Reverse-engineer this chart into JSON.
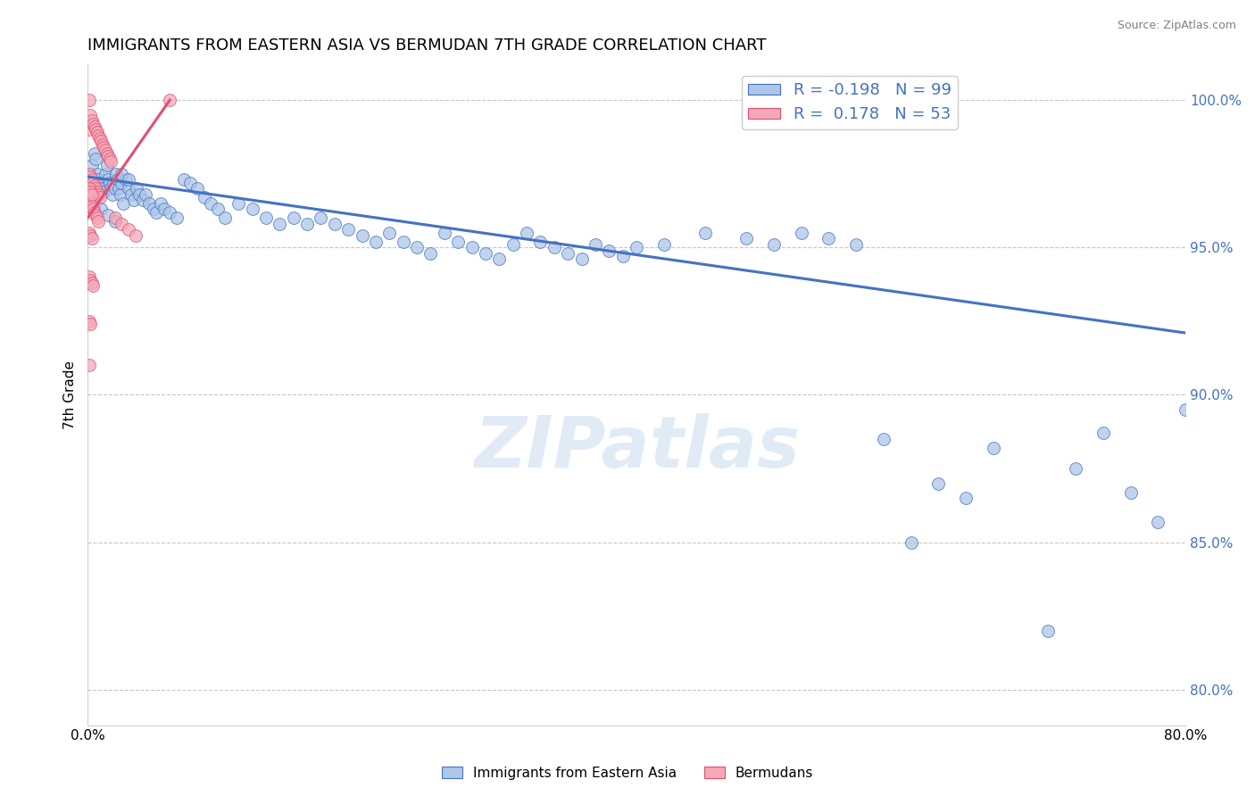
{
  "title": "IMMIGRANTS FROM EASTERN ASIA VS BERMUDAN 7TH GRADE CORRELATION CHART",
  "source": "Source: ZipAtlas.com",
  "ylabel": "7th Grade",
  "xlim": [
    0.0,
    0.8
  ],
  "ylim": [
    0.788,
    1.012
  ],
  "x_ticks": [
    0.0,
    0.2,
    0.4,
    0.6,
    0.8
  ],
  "x_tick_labels": [
    "0.0%",
    "",
    "",
    "",
    "80.0%"
  ],
  "y_ticks": [
    0.8,
    0.85,
    0.9,
    0.95,
    1.0
  ],
  "y_tick_labels": [
    "80.0%",
    "85.0%",
    "90.0%",
    "95.0%",
    "100.0%"
  ],
  "blue_R": -0.198,
  "blue_N": 99,
  "pink_R": 0.178,
  "pink_N": 53,
  "blue_color": "#aec6e8",
  "pink_color": "#f4a8b8",
  "blue_line_color": "#4472c4",
  "pink_line_color": "#e05070",
  "watermark": "ZIPatlas",
  "blue_line_x0": 0.0,
  "blue_line_y0": 0.974,
  "blue_line_x1": 0.8,
  "blue_line_y1": 0.921,
  "pink_line_x0": 0.0,
  "pink_line_y0": 0.96,
  "pink_line_x1": 0.06,
  "pink_line_y1": 1.0,
  "blue_points_x": [
    0.003,
    0.005,
    0.006,
    0.007,
    0.008,
    0.009,
    0.01,
    0.011,
    0.012,
    0.013,
    0.014,
    0.015,
    0.016,
    0.017,
    0.018,
    0.019,
    0.02,
    0.021,
    0.022,
    0.023,
    0.024,
    0.025,
    0.026,
    0.028,
    0.03,
    0.032,
    0.034,
    0.036,
    0.038,
    0.04,
    0.042,
    0.045,
    0.048,
    0.05,
    0.053,
    0.056,
    0.06,
    0.065,
    0.07,
    0.075,
    0.08,
    0.085,
    0.09,
    0.095,
    0.1,
    0.11,
    0.12,
    0.13,
    0.14,
    0.15,
    0.16,
    0.17,
    0.18,
    0.19,
    0.2,
    0.21,
    0.22,
    0.23,
    0.24,
    0.25,
    0.26,
    0.27,
    0.28,
    0.29,
    0.3,
    0.31,
    0.32,
    0.33,
    0.34,
    0.35,
    0.36,
    0.37,
    0.38,
    0.39,
    0.4,
    0.42,
    0.45,
    0.48,
    0.5,
    0.52,
    0.54,
    0.56,
    0.58,
    0.6,
    0.62,
    0.64,
    0.66,
    0.7,
    0.72,
    0.74,
    0.76,
    0.78,
    0.8,
    0.005,
    0.01,
    0.015,
    0.02,
    0.025,
    0.03
  ],
  "blue_points_y": [
    0.978,
    0.982,
    0.98,
    0.975,
    0.973,
    0.972,
    0.971,
    0.97,
    0.969,
    0.975,
    0.978,
    0.973,
    0.972,
    0.97,
    0.968,
    0.972,
    0.97,
    0.975,
    0.973,
    0.97,
    0.968,
    0.972,
    0.965,
    0.973,
    0.97,
    0.968,
    0.966,
    0.97,
    0.968,
    0.966,
    0.968,
    0.965,
    0.963,
    0.962,
    0.965,
    0.963,
    0.962,
    0.96,
    0.973,
    0.972,
    0.97,
    0.967,
    0.965,
    0.963,
    0.96,
    0.965,
    0.963,
    0.96,
    0.958,
    0.96,
    0.958,
    0.96,
    0.958,
    0.956,
    0.954,
    0.952,
    0.955,
    0.952,
    0.95,
    0.948,
    0.955,
    0.952,
    0.95,
    0.948,
    0.946,
    0.951,
    0.955,
    0.952,
    0.95,
    0.948,
    0.946,
    0.951,
    0.949,
    0.947,
    0.95,
    0.951,
    0.955,
    0.953,
    0.951,
    0.955,
    0.953,
    0.951,
    0.885,
    0.85,
    0.87,
    0.865,
    0.882,
    0.82,
    0.875,
    0.887,
    0.867,
    0.857,
    0.895,
    0.965,
    0.963,
    0.961,
    0.959,
    0.975,
    0.973
  ],
  "pink_points_x": [
    0.001,
    0.002,
    0.003,
    0.004,
    0.005,
    0.006,
    0.007,
    0.008,
    0.009,
    0.01,
    0.011,
    0.012,
    0.013,
    0.014,
    0.015,
    0.016,
    0.017,
    0.001,
    0.002,
    0.003,
    0.004,
    0.005,
    0.006,
    0.007,
    0.008,
    0.009,
    0.001,
    0.002,
    0.003,
    0.004,
    0.005,
    0.006,
    0.007,
    0.008,
    0.001,
    0.002,
    0.003,
    0.001,
    0.002,
    0.003,
    0.001,
    0.002,
    0.003,
    0.004,
    0.02,
    0.025,
    0.03,
    0.035,
    0.001,
    0.002,
    0.001,
    0.001,
    0.06
  ],
  "pink_points_y": [
    0.99,
    0.995,
    0.993,
    0.992,
    0.991,
    0.99,
    0.989,
    0.988,
    0.987,
    0.986,
    0.985,
    0.984,
    0.983,
    0.982,
    0.981,
    0.98,
    0.979,
    0.975,
    0.974,
    0.973,
    0.972,
    0.971,
    0.97,
    0.969,
    0.968,
    0.967,
    0.966,
    0.965,
    0.964,
    0.963,
    0.962,
    0.961,
    0.96,
    0.959,
    0.97,
    0.969,
    0.968,
    0.955,
    0.954,
    0.953,
    0.94,
    0.939,
    0.938,
    0.937,
    0.96,
    0.958,
    0.956,
    0.954,
    0.925,
    0.924,
    0.91,
    1.0,
    1.0
  ]
}
